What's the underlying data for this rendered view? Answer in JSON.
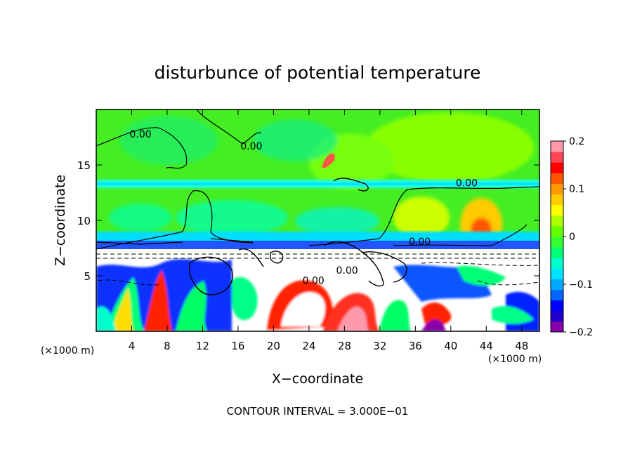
{
  "chart_data": {
    "type": "heatmap",
    "title": "disturbunce of potential temperature",
    "xlabel": "X−coordinate",
    "ylabel": "Z−coordinate",
    "x_unit_left": "(×1000 m)",
    "x_unit_right": "(×1000 m)",
    "xlim": [
      0,
      50
    ],
    "ylim": [
      0,
      20
    ],
    "x_ticks": [
      {
        "value": 4,
        "label": "4"
      },
      {
        "value": 8,
        "label": "8"
      },
      {
        "value": 12,
        "label": "12"
      },
      {
        "value": 16,
        "label": "16"
      },
      {
        "value": 20,
        "label": "20"
      },
      {
        "value": 24,
        "label": "24"
      },
      {
        "value": 28,
        "label": "28"
      },
      {
        "value": 32,
        "label": "32"
      },
      {
        "value": 36,
        "label": "36"
      },
      {
        "value": 40,
        "label": "40"
      },
      {
        "value": 44,
        "label": "44"
      },
      {
        "value": 48,
        "label": "48"
      }
    ],
    "y_ticks": [
      {
        "value": 5,
        "label": "5"
      },
      {
        "value": 10,
        "label": "10"
      },
      {
        "value": 15,
        "label": "15"
      }
    ],
    "colorbar": {
      "min": -0.2,
      "max": 0.2,
      "ticks": [
        {
          "value": 0.2,
          "label": "0.2"
        },
        {
          "value": 0.1,
          "label": "0.1"
        },
        {
          "value": 0,
          "label": "0"
        },
        {
          "value": -0.1,
          "label": "−0.1"
        },
        {
          "value": -0.2,
          "label": "−0.2"
        }
      ],
      "colors": [
        "#8800aa",
        "#2200cc",
        "#0000ff",
        "#0066ff",
        "#00aaff",
        "#00e5ff",
        "#00ffcc",
        "#00ff77",
        "#33ff33",
        "#66ff00",
        "#aaff00",
        "#ffff00",
        "#ffcc00",
        "#ff9900",
        "#ff5500",
        "#ff0000",
        "#ff4455",
        "#ff99aa"
      ]
    },
    "contour_labels": [
      {
        "x": 5,
        "z": 17.8,
        "text": "0.00"
      },
      {
        "x": 17.5,
        "z": 16.7,
        "text": "0.00"
      },
      {
        "x": 41.8,
        "z": 13.4,
        "text": "0.00"
      },
      {
        "x": 36.5,
        "z": 8.1,
        "text": "0.00"
      },
      {
        "x": 28.3,
        "z": 5.5,
        "text": "0.00"
      },
      {
        "x": 24.5,
        "z": 4.6,
        "text": "0.00"
      }
    ],
    "annotations": [
      "CONTOUR INTERVAL = 3.000E−01"
    ]
  }
}
